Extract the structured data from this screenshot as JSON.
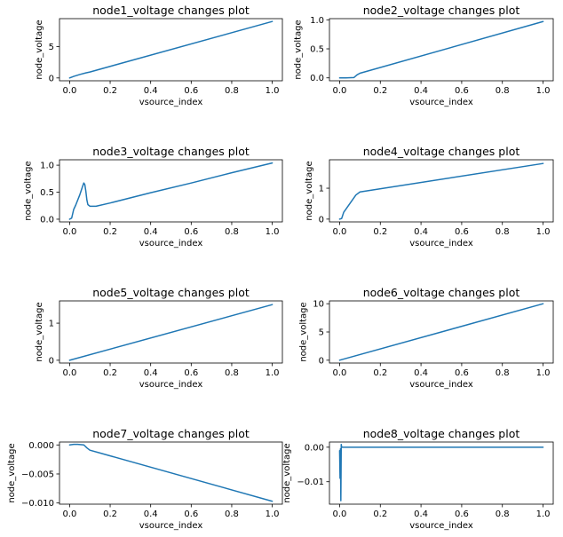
{
  "colors": {
    "line": "#1f77b4",
    "axis": "#000000",
    "background": "#ffffff"
  },
  "chart_data": [
    {
      "type": "line",
      "title": "node1_voltage changes plot",
      "xlabel": "vsource_index",
      "ylabel": "node_voltage",
      "xlim": [
        -0.05,
        1.05
      ],
      "ylim": [
        -0.45,
        9.45
      ],
      "xticks": [
        0.0,
        0.2,
        0.4,
        0.6,
        0.8,
        1.0
      ],
      "xtick_labels": [
        "0.0",
        "0.2",
        "0.4",
        "0.6",
        "0.8",
        "1.0"
      ],
      "yticks": [
        0,
        5
      ],
      "ytick_labels": [
        "0",
        "5"
      ],
      "series": [
        {
          "x": [
            0.0,
            0.02,
            0.05,
            0.08,
            0.1,
            1.0
          ],
          "y": [
            0.0,
            0.25,
            0.55,
            0.8,
            0.95,
            9.0
          ]
        }
      ]
    },
    {
      "type": "line",
      "title": "node2_voltage changes plot",
      "xlabel": "vsource_index",
      "ylabel": "node_voltage",
      "xlim": [
        -0.05,
        1.05
      ],
      "ylim": [
        -0.05,
        1.02
      ],
      "xticks": [
        0.0,
        0.2,
        0.4,
        0.6,
        0.8,
        1.0
      ],
      "xtick_labels": [
        "0.0",
        "0.2",
        "0.4",
        "0.6",
        "0.8",
        "1.0"
      ],
      "yticks": [
        0.0,
        0.5,
        1.0
      ],
      "ytick_labels": [
        "0.0",
        "0.5",
        "1.0"
      ],
      "series": [
        {
          "x": [
            0.0,
            0.03,
            0.07,
            0.085,
            0.1,
            1.0
          ],
          "y": [
            0.0,
            0.0,
            0.005,
            0.05,
            0.08,
            0.97
          ]
        }
      ]
    },
    {
      "type": "line",
      "title": "node3_voltage changes plot",
      "xlabel": "vsource_index",
      "ylabel": "node_voltage",
      "xlim": [
        -0.05,
        1.05
      ],
      "ylim": [
        -0.05,
        1.1
      ],
      "xticks": [
        0.0,
        0.2,
        0.4,
        0.6,
        0.8,
        1.0
      ],
      "xtick_labels": [
        "0.0",
        "0.2",
        "0.4",
        "0.6",
        "0.8",
        "1.0"
      ],
      "yticks": [
        0.0,
        0.5,
        1.0
      ],
      "ytick_labels": [
        "0.0",
        "0.5",
        "1.0"
      ],
      "series": [
        {
          "x": [
            0.0,
            0.01,
            0.02,
            0.03,
            0.05,
            0.065,
            0.07,
            0.075,
            0.08,
            0.085,
            0.09,
            0.1,
            0.13,
            0.2,
            0.4,
            0.6,
            0.8,
            1.0
          ],
          "y": [
            0.0,
            0.02,
            0.18,
            0.26,
            0.45,
            0.62,
            0.67,
            0.64,
            0.52,
            0.36,
            0.27,
            0.24,
            0.24,
            0.3,
            0.49,
            0.67,
            0.86,
            1.04
          ]
        }
      ]
    },
    {
      "type": "line",
      "title": "node4_voltage changes plot",
      "xlabel": "vsource_index",
      "ylabel": "node_voltage",
      "xlim": [
        -0.05,
        1.05
      ],
      "ylim": [
        -0.09,
        1.92
      ],
      "xticks": [
        0.0,
        0.2,
        0.4,
        0.6,
        0.8,
        1.0
      ],
      "xtick_labels": [
        "0.0",
        "0.2",
        "0.4",
        "0.6",
        "0.8",
        "1.0"
      ],
      "yticks": [
        0,
        1
      ],
      "ytick_labels": [
        "0",
        "1"
      ],
      "series": [
        {
          "x": [
            0.0,
            0.01,
            0.02,
            0.05,
            0.08,
            0.1,
            1.0
          ],
          "y": [
            0.0,
            0.02,
            0.22,
            0.5,
            0.78,
            0.88,
            1.8
          ]
        }
      ]
    },
    {
      "type": "line",
      "title": "node5_voltage changes plot",
      "xlabel": "vsource_index",
      "ylabel": "node_voltage",
      "xlim": [
        -0.05,
        1.05
      ],
      "ylim": [
        -0.075,
        1.6
      ],
      "xticks": [
        0.0,
        0.2,
        0.4,
        0.6,
        0.8,
        1.0
      ],
      "xtick_labels": [
        "0.0",
        "0.2",
        "0.4",
        "0.6",
        "0.8",
        "1.0"
      ],
      "yticks": [
        0,
        1
      ],
      "ytick_labels": [
        "0",
        "1"
      ],
      "series": [
        {
          "x": [
            0.0,
            1.0
          ],
          "y": [
            0.0,
            1.5
          ]
        }
      ]
    },
    {
      "type": "line",
      "title": "node6_voltage changes plot",
      "xlabel": "vsource_index",
      "ylabel": "node_voltage",
      "xlim": [
        -0.05,
        1.05
      ],
      "ylim": [
        -0.5,
        10.5
      ],
      "xticks": [
        0.0,
        0.2,
        0.4,
        0.6,
        0.8,
        1.0
      ],
      "xtick_labels": [
        "0.0",
        "0.2",
        "0.4",
        "0.6",
        "0.8",
        "1.0"
      ],
      "yticks": [
        0,
        5,
        10
      ],
      "ytick_labels": [
        "0",
        "5",
        "10"
      ],
      "series": [
        {
          "x": [
            0.0,
            1.0
          ],
          "y": [
            0.0,
            10.0
          ]
        }
      ]
    },
    {
      "type": "line",
      "title": "node7_voltage changes plot",
      "xlabel": "vsource_index",
      "ylabel": "node_voltage",
      "xlim": [
        -0.05,
        1.05
      ],
      "ylim": [
        -0.0102,
        0.0005
      ],
      "xticks": [
        0.0,
        0.2,
        0.4,
        0.6,
        0.8,
        1.0
      ],
      "xtick_labels": [
        "0.0",
        "0.2",
        "0.4",
        "0.6",
        "0.8",
        "1.0"
      ],
      "yticks": [
        0.0,
        -0.005,
        -0.01
      ],
      "ytick_labels": [
        "0.000",
        "−0.005",
        "−0.010"
      ],
      "series": [
        {
          "x": [
            0.0,
            0.02,
            0.04,
            0.07,
            0.085,
            0.1,
            1.0
          ],
          "y": [
            0.0,
            0.0001,
            0.0001,
            0.0,
            -0.0005,
            -0.0009,
            -0.0097
          ]
        }
      ]
    },
    {
      "type": "line",
      "title": "node8_voltage changes plot",
      "xlabel": "vsource_index",
      "ylabel": "node_voltage",
      "xlim": [
        -0.05,
        1.05
      ],
      "ylim": [
        -0.0165,
        0.0015
      ],
      "xticks": [
        0.0,
        0.2,
        0.4,
        0.6,
        0.8,
        1.0
      ],
      "xtick_labels": [
        "0.0",
        "0.2",
        "0.4",
        "0.6",
        "0.8",
        "1.0"
      ],
      "yticks": [
        0.0,
        -0.01
      ],
      "ytick_labels": [
        "0.00",
        "−0.01"
      ],
      "series": [
        {
          "x": [
            0.0,
            0.002,
            0.004,
            0.006,
            0.008,
            0.01,
            0.014,
            0.02,
            1.0
          ],
          "y": [
            -0.001,
            -0.009,
            -0.0005,
            -0.0155,
            0.0008,
            0.0,
            0.0,
            0.0,
            0.0
          ]
        }
      ]
    }
  ]
}
